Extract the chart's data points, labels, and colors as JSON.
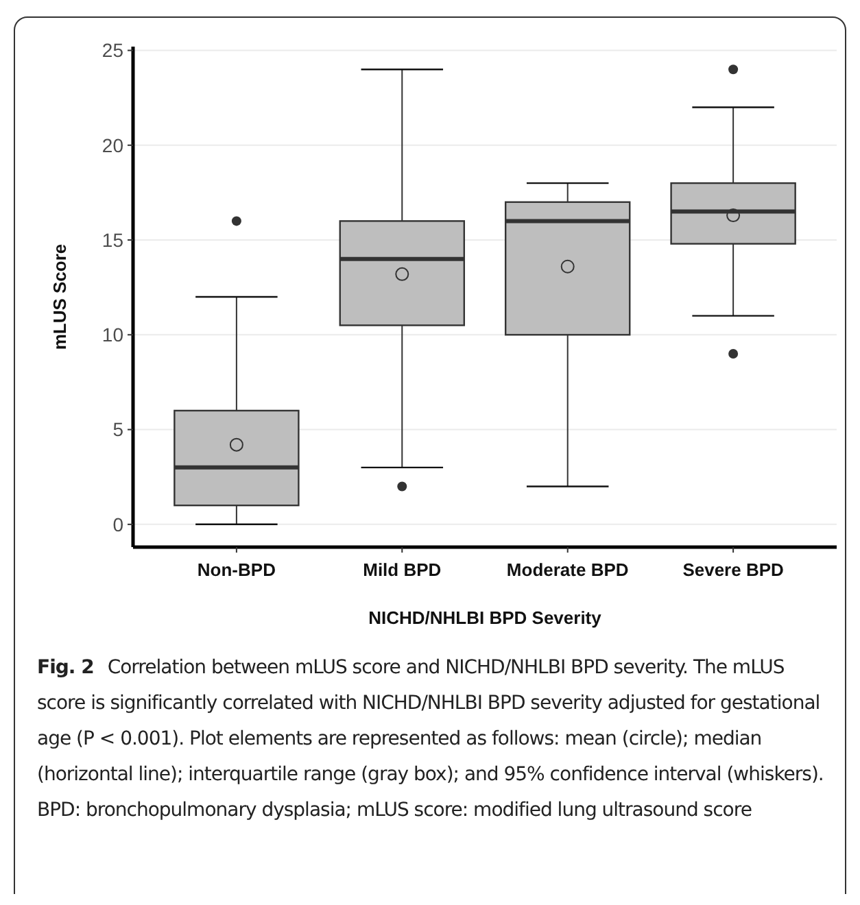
{
  "chart_data": {
    "type": "box",
    "xlabel": "NICHD/NHLBI BPD Severity",
    "ylabel": "mLUS Score",
    "categories": [
      "Non-BPD",
      "Mild BPD",
      "Moderate BPD",
      "Severe BPD"
    ],
    "boxes": [
      {
        "low": 0,
        "q1": 1,
        "median": 3,
        "q3": 6,
        "high": 12,
        "mean": 4.2,
        "outliers": [
          16
        ]
      },
      {
        "low": 3,
        "q1": 10.5,
        "median": 14,
        "q3": 16,
        "high": 24,
        "mean": 13.2,
        "outliers": [
          2
        ]
      },
      {
        "low": 2,
        "q1": 10,
        "median": 16,
        "q3": 17,
        "high": 18,
        "mean": 13.6
      },
      {
        "low": 11,
        "q1": 14.8,
        "median": 16.5,
        "q3": 18,
        "high": 22,
        "mean": 16.3,
        "outliers": [
          24,
          9
        ]
      }
    ],
    "color": "#bebebe",
    "ylim": [
      -1.2,
      25.2
    ],
    "yticks": [
      0,
      5,
      10,
      15,
      20,
      25
    ],
    "grid": "y",
    "annotations": [
      "Fig. 2",
      "Correlation between mLUS score and NICHD/NHLBI BPD severity. The mLUS score is significantly correlated with NICHD/NHLBI BPD severity adjusted for gestational age (P < 0.001). Plot elements are represented as follows: mean (circle); median (horizontal line); interquartile range (gray box); and 95% confidence interval (whiskers). BPD: bronchopulmonary dysplasia; mLUS score: modified lung ultrasound score"
    ]
  }
}
